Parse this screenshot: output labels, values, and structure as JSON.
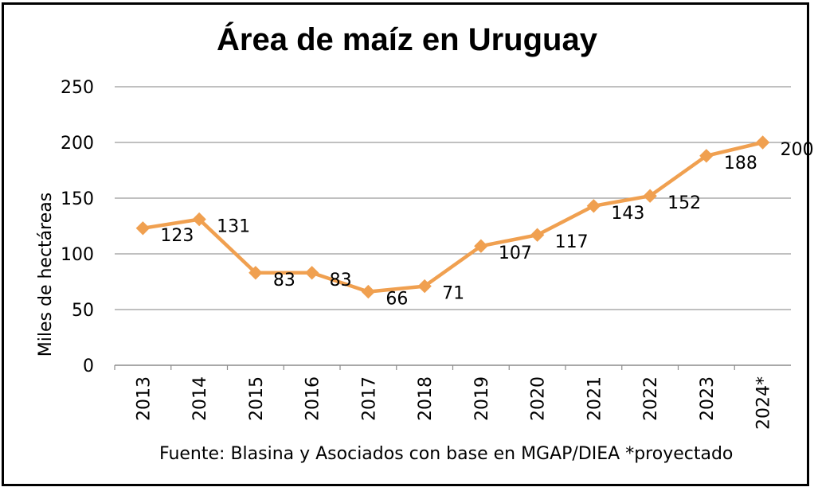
{
  "chart_data": {
    "type": "line",
    "title": "Área de maíz en Uruguay",
    "ylabel": "Miles de hectáreas",
    "xlabel": "",
    "categories": [
      "2013",
      "2014",
      "2015",
      "2016",
      "2017",
      "2018",
      "2019",
      "2020",
      "2021",
      "2022",
      "2023",
      "2024*"
    ],
    "series": [
      {
        "values": [
          123,
          131,
          83,
          83,
          66,
          71,
          107,
          117,
          143,
          152,
          188,
          200
        ]
      }
    ],
    "ylim": [
      0,
      250
    ],
    "yticks": [
      "0",
      "50",
      "100",
      "150",
      "200",
      "250"
    ],
    "grid": true,
    "legend": "none",
    "data_labels": true,
    "line_color": "#F0A050",
    "marker": "diamond",
    "source_note": "Fuente: Blasina y Asociados con base en MGAP/DIEA *proyectado"
  }
}
